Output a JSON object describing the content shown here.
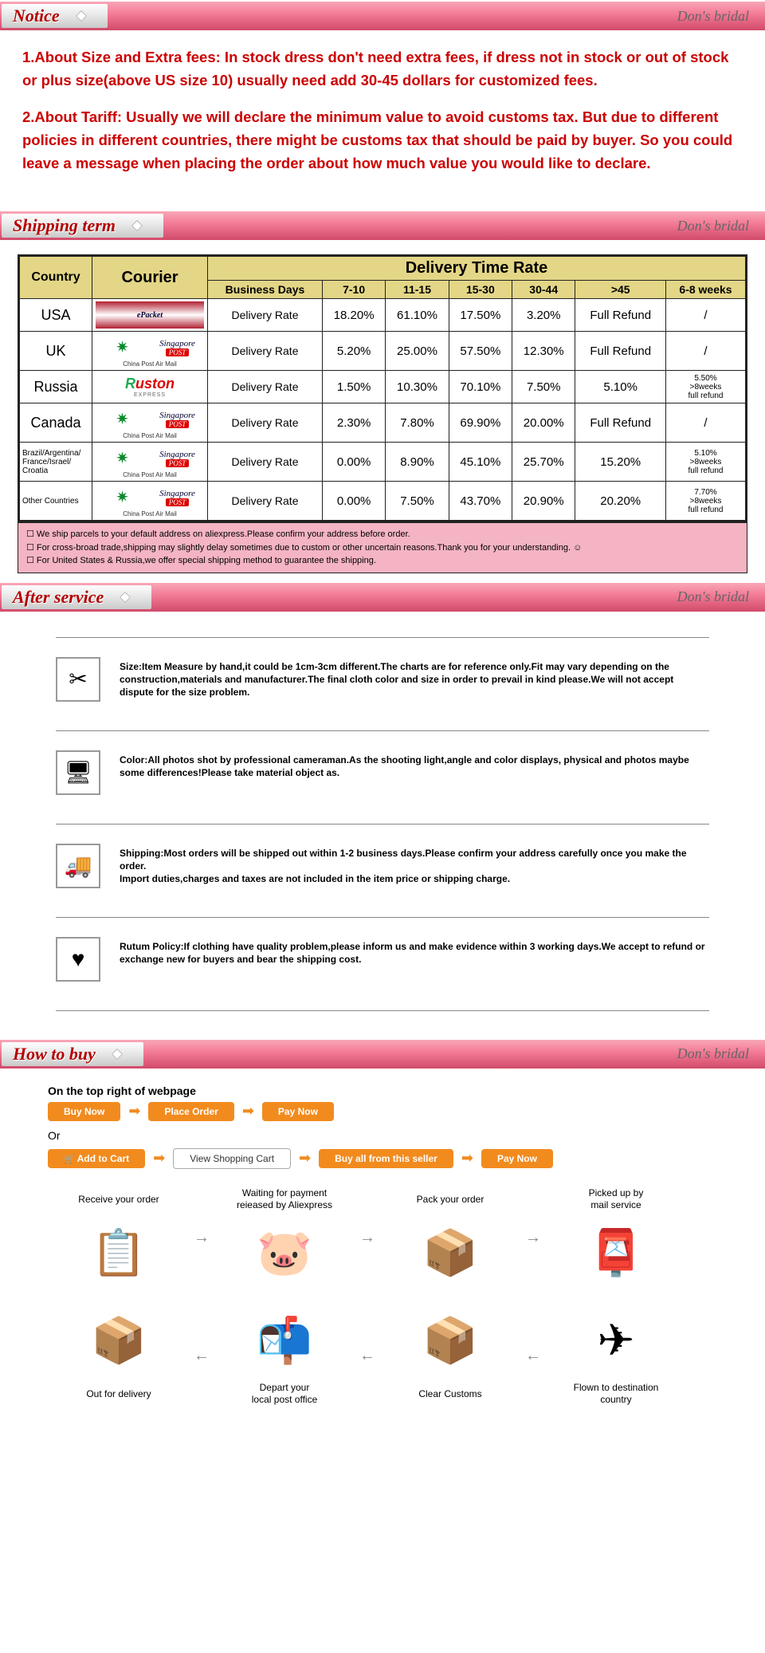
{
  "brand": "Don's bridal",
  "sections": {
    "notice": "Notice",
    "shipping": "Shipping term",
    "after": "After service",
    "howbuy": "How to buy"
  },
  "notice": {
    "p1": "1.About Size and Extra fees: In stock dress don't need extra fees, if dress not in stock or out of stock or plus size(above US size 10) usually need add 30-45 dollars for customized fees.",
    "p2": "2.About Tariff: Usually we will declare the minimum value to avoid customs tax. But due to different policies in different countries, there might be customs tax that should be paid by buyer. So you could leave a message when placing the order about how much value you would like to declare."
  },
  "shipping": {
    "headers": {
      "country": "Country",
      "courier": "Courier",
      "delivery": "Delivery Time Rate",
      "cols": [
        "Business Days",
        "7-10",
        "11-15",
        "15-30",
        "30-44",
        ">45",
        "6-8 weeks"
      ]
    },
    "rows": [
      {
        "country": "USA",
        "courier": "ePacket",
        "sub": "",
        "label": "Delivery Rate",
        "c": [
          "18.20%",
          "61.10%",
          "17.50%",
          "3.20%",
          "Full Refund",
          "/"
        ]
      },
      {
        "country": "UK",
        "courier": "cpam",
        "sub": "China Post Air Mail",
        "label": "Delivery Rate",
        "c": [
          "5.20%",
          "25.00%",
          "57.50%",
          "12.30%",
          "Full Refund",
          "/"
        ]
      },
      {
        "country": "Russia",
        "courier": "ruston",
        "sub": "EXPRESS",
        "label": "Delivery Rate",
        "c": [
          "1.50%",
          "10.30%",
          "70.10%",
          "7.50%",
          "5.10%",
          "5.50%\n>8weeks\nfull refund"
        ]
      },
      {
        "country": "Canada",
        "courier": "cpam",
        "sub": "China Post Air Mail",
        "label": "Delivery Rate",
        "c": [
          "2.30%",
          "7.80%",
          "69.90%",
          "20.00%",
          "Full Refund",
          "/"
        ]
      },
      {
        "country": "Brazil/Argentina/\nFrance/Israel/\nCroatia",
        "small": true,
        "courier": "cpam",
        "sub": "China Post Air Mail",
        "label": "Delivery Rate",
        "c": [
          "0.00%",
          "8.90%",
          "45.10%",
          "25.70%",
          "15.20%",
          "5.10%\n>8weeks\nfull refund"
        ]
      },
      {
        "country": "Other Countries",
        "small": true,
        "courier": "cpam",
        "sub": "China Post Air Mail",
        "label": "Delivery Rate",
        "c": [
          "0.00%",
          "7.50%",
          "43.70%",
          "20.90%",
          "20.20%",
          "7.70%\n>8weeks\nfull refund"
        ]
      }
    ],
    "notes": [
      "We ship parcels to your default address on aliexpress.Please confirm your address before order.",
      "For cross-broad trade,shipping may slightly delay sometimes due to custom or other uncertain reasons.Thank you for your understanding.  ☺",
      "For United States & Russia,we offer special shipping method to guarantee the shipping."
    ]
  },
  "after": [
    {
      "icon": "✂",
      "text": "Size:Item Measure by hand,it could be 1cm-3cm different.The charts are for reference only.Fit may vary depending on the construction,materials and manufacturer.The final cloth color and size in order to prevail in kind please.We will not accept dispute for the size problem."
    },
    {
      "icon": "🖥",
      "text": "Color:All photos shot by professional cameraman.As the shooting light,angle and color displays, physical and photos maybe some differences!Please take material object as."
    },
    {
      "icon": "🚚",
      "text": "Shipping:Most orders will be shipped out within 1-2 business days.Please confirm your address carefully once you make the order.\nImport duties,charges and taxes are not included in the item price or shipping charge."
    },
    {
      "icon": "♥",
      "text": "Rutum Policy:If clothing have quality problem,please inform us and make evidence within 3 working days.We accept to refund or exchange new for buyers and bear the shipping cost."
    }
  ],
  "howbuy": {
    "intro": "On the top right of webpage",
    "row1": [
      "Buy Now",
      "Place Order",
      "Pay Now"
    ],
    "or": "Or",
    "row2": [
      {
        "t": "Add to Cart",
        "s": "orange",
        "cart": true
      },
      {
        "t": "View Shopping Cart",
        "s": "outline"
      },
      {
        "t": "Buy all from this seller",
        "s": "orange"
      },
      {
        "t": "Pay Now",
        "s": "orange"
      }
    ],
    "proc_top": [
      {
        "l": "Receive your order",
        "i": "📋"
      },
      {
        "l": "Waiting for payment\nreieased by Aliexpress",
        "i": "🐷"
      },
      {
        "l": "Pack your order",
        "i": "📦"
      },
      {
        "l": "Picked up by\nmail service",
        "i": "📮"
      }
    ],
    "proc_bot": [
      {
        "l": "Out for delivery",
        "i": "📦"
      },
      {
        "l": "Depart your\nlocal post office",
        "i": "📬"
      },
      {
        "l": "Clear Customs",
        "i": "📦"
      },
      {
        "l": "Flown to destination\ncountry",
        "i": "✈"
      }
    ]
  },
  "colors": {
    "headerGrad": "#d14a6a",
    "red": "#cc0000",
    "orange": "#f28b1e",
    "tableHeader": "#e3d686",
    "noteBg": "#f4b4c3"
  }
}
